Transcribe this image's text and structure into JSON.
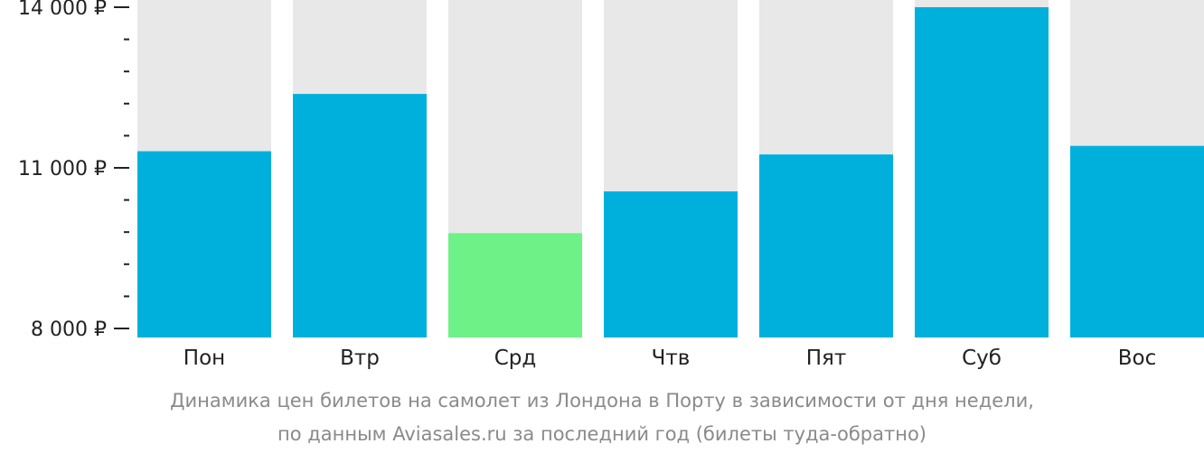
{
  "chart_data": {
    "type": "bar",
    "categories": [
      "Пон",
      "Втр",
      "Срд",
      "Чтв",
      "Пят",
      "Суб",
      "Вос"
    ],
    "values": [
      11310,
      12380,
      9780,
      10560,
      11250,
      14000,
      11410
    ],
    "highlight_index": 2,
    "ylim": [
      8000,
      14000
    ],
    "yticks": [
      {
        "value": 14000,
        "label": "14 000 ₽"
      },
      {
        "value": 11000,
        "label": "11 000 ₽"
      },
      {
        "value": 8000,
        "label": "8 000 ₽"
      }
    ],
    "minor_tick_step": 600,
    "colors": {
      "bar": "#00b0dc",
      "highlight": "#6ef288",
      "track": "#e8e8e8",
      "axis": "#222222"
    },
    "xlabel": "",
    "ylabel": ""
  },
  "caption": {
    "line1": "Динамика цен билетов на самолет из Лондона в Порту в зависимости от дня недели,",
    "line2": "по данным Aviasales.ru за последний год (билеты туда-обратно)"
  }
}
